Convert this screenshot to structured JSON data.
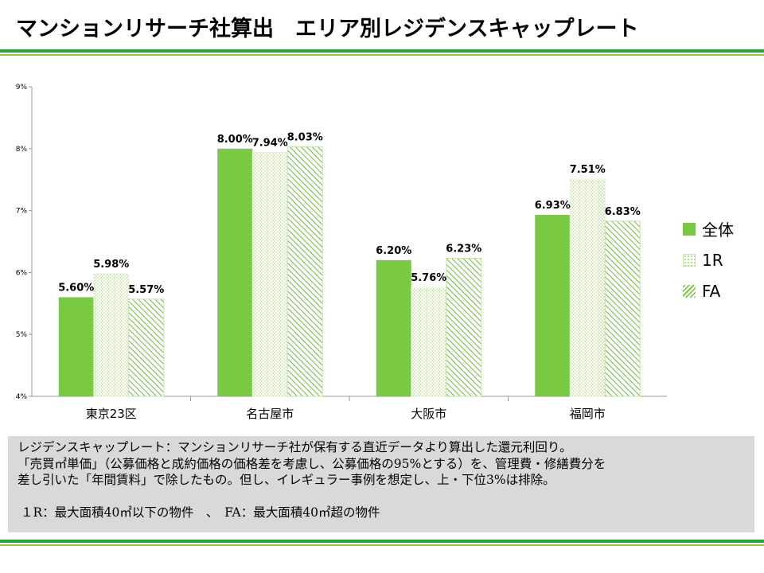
{
  "slide": {
    "title": "マンションリサーチ社算出　エリア別レジデンスキャップレート"
  },
  "colors": {
    "zentai": "#7ac943",
    "one_r_dot": "#9acd66",
    "fa_hatch": "#6cbd3a",
    "rule_dark": "#2aa13a",
    "rule_light": "#8cc63f",
    "note_bg": "#d9d9d9"
  },
  "legend": [
    {
      "name": "全体",
      "pattern": "solid"
    },
    {
      "name": "1R",
      "pattern": "dots"
    },
    {
      "name": "FA",
      "pattern": "hatch"
    }
  ],
  "chart_data": {
    "type": "bar",
    "categories": [
      "東京23区",
      "名古屋市",
      "大阪市",
      "福岡市"
    ],
    "series": [
      {
        "name": "全体",
        "values": [
          5.6,
          8.0,
          6.2,
          6.93
        ],
        "labels": [
          "5.60%",
          "8.00%",
          "6.20%",
          "6.93%"
        ]
      },
      {
        "name": "1R",
        "values": [
          5.98,
          7.94,
          5.76,
          7.51
        ],
        "labels": [
          "5.98%",
          "7.94%",
          "5.76%",
          "7.51%"
        ]
      },
      {
        "name": "FA",
        "values": [
          5.57,
          8.03,
          6.23,
          6.83
        ],
        "labels": [
          "5.57%",
          "8.03%",
          "6.23%",
          "6.83%"
        ]
      }
    ],
    "ylim": [
      4,
      9
    ],
    "yticks": [
      "4%",
      "5%",
      "6%",
      "7%",
      "8%",
      "9%"
    ],
    "legend_position": "right",
    "grid": false
  },
  "note": {
    "line1": "レジデンスキャップレート：マンションリサーチ社が保有する直近データより算出した還元利回り。",
    "line2": "「売買㎡単価」（公募価格と成約価格の価格差を考慮し、公募価格の95%とする）を、管理費・修繕費分を",
    "line3": "差し引いた「年間賃料」で除したもの。但し、イレギュラー事例を想定し、上・下位3%は排除。",
    "definition": "１R：最大面積40㎡以下の物件　、　FA：最大面積40㎡超の物件"
  }
}
